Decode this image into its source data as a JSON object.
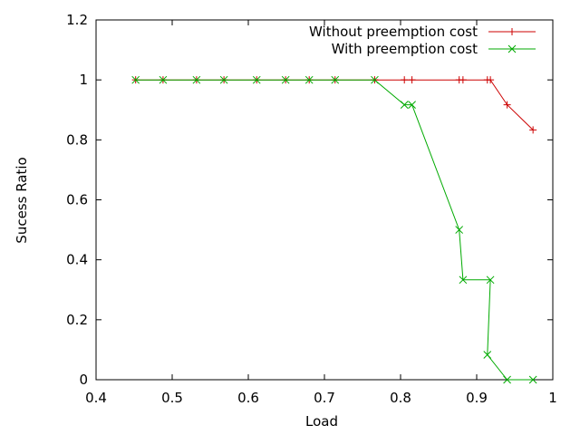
{
  "chart_data": {
    "type": "line",
    "xlabel": "Load",
    "ylabel": "Sucess Ratio",
    "xlim": [
      0.4,
      1.0
    ],
    "ylim": [
      0,
      1.2
    ],
    "xticks": [
      "0.4",
      "0.5",
      "0.6",
      "0.7",
      "0.8",
      "0.9",
      "1"
    ],
    "yticks": [
      "0",
      "0.2",
      "0.4",
      "0.6",
      "0.8",
      "1",
      "1.2"
    ],
    "grid": false,
    "legend_position": "top-right",
    "series": [
      {
        "name": "Without preemption cost",
        "color": "#cc0000",
        "marker": "plus",
        "x": [
          0.452,
          0.488,
          0.532,
          0.568,
          0.611,
          0.649,
          0.68,
          0.714,
          0.766,
          0.805,
          0.815,
          0.877,
          0.882,
          0.914,
          0.918,
          0.94,
          0.974
        ],
        "y": [
          1,
          1,
          1,
          1,
          1,
          1,
          1,
          1,
          1,
          1,
          1,
          1,
          1,
          1,
          1,
          0.917,
          0.833
        ]
      },
      {
        "name": "With preemption cost",
        "color": "#00aa00",
        "marker": "x",
        "x": [
          0.452,
          0.488,
          0.532,
          0.568,
          0.611,
          0.649,
          0.68,
          0.714,
          0.766,
          0.805,
          0.815,
          0.877,
          0.882,
          0.918,
          0.914,
          0.94,
          0.974
        ],
        "y": [
          1,
          1,
          1,
          1,
          1,
          1,
          1,
          1,
          1,
          0.917,
          0.917,
          0.5,
          0.333,
          0.333,
          0.083,
          0,
          0
        ]
      }
    ]
  }
}
